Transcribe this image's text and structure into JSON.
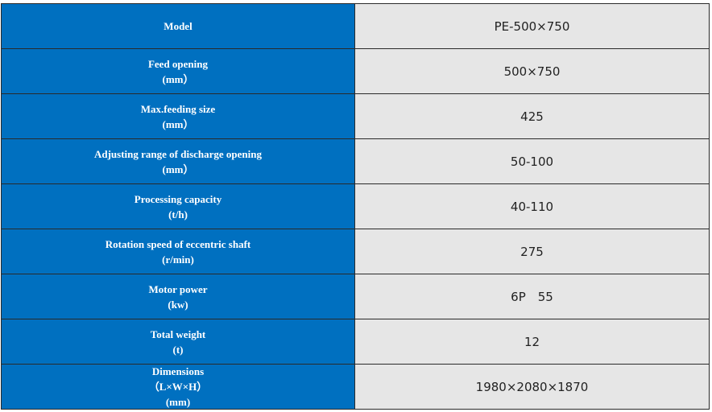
{
  "table": {
    "rows": [
      {
        "label": [
          "Model"
        ],
        "value": "PE-500×750"
      },
      {
        "label": [
          "Feed opening",
          "(mm）"
        ],
        "value": "500×750"
      },
      {
        "label": [
          "Max.feeding size",
          "(mm）"
        ],
        "value": "425"
      },
      {
        "label": [
          "Adjusting range of discharge opening",
          "(mm）"
        ],
        "value": "50-100"
      },
      {
        "label": [
          "Processing capacity",
          "(t/h)"
        ],
        "value": "40-110"
      },
      {
        "label": [
          "Rotation speed of eccentric shaft",
          "(r/min)"
        ],
        "value": "275"
      },
      {
        "label": [
          "Motor power",
          "(kw)"
        ],
        "value": "6P　55"
      },
      {
        "label": [
          "Total weight",
          "(t)"
        ],
        "value": "12"
      },
      {
        "label": [
          "Dimensions",
          "（L×W×H）",
          "(mm)"
        ],
        "value": "1980×2080×1870"
      }
    ]
  }
}
